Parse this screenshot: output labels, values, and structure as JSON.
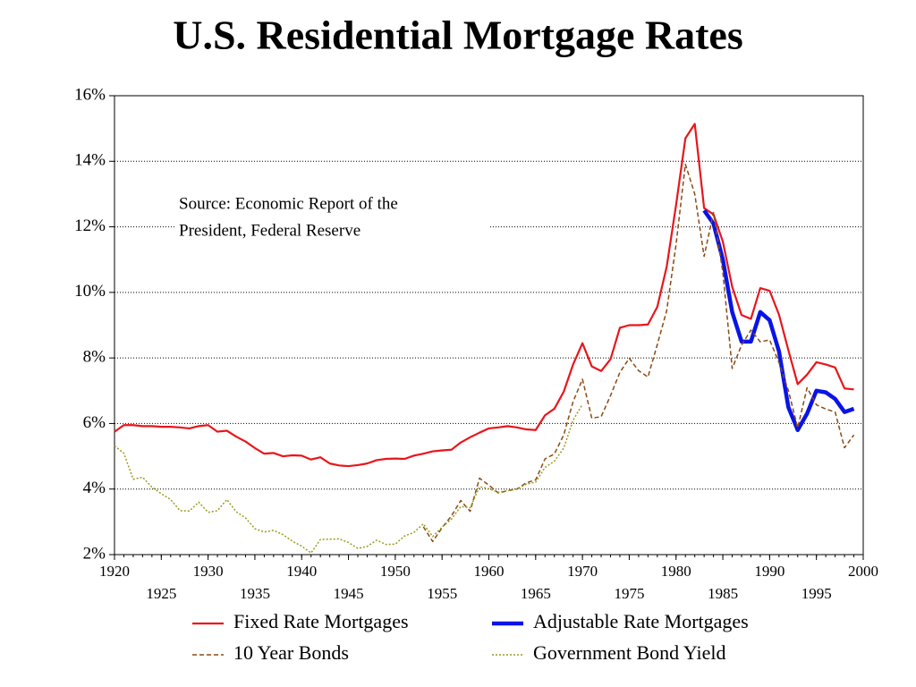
{
  "chart_data": {
    "type": "line",
    "title": "U.S. Residential Mortgage Rates",
    "annotation": [
      "Source: Economic Report of the",
      "President, Federal Reserve"
    ],
    "x": [
      1920,
      1921,
      1922,
      1923,
      1924,
      1925,
      1926,
      1927,
      1928,
      1929,
      1930,
      1931,
      1932,
      1933,
      1934,
      1935,
      1936,
      1937,
      1938,
      1939,
      1940,
      1941,
      1942,
      1943,
      1944,
      1945,
      1946,
      1947,
      1948,
      1949,
      1950,
      1951,
      1952,
      1953,
      1954,
      1955,
      1956,
      1957,
      1958,
      1959,
      1960,
      1961,
      1962,
      1963,
      1964,
      1965,
      1966,
      1967,
      1968,
      1969,
      1970,
      1971,
      1972,
      1973,
      1974,
      1975,
      1976,
      1977,
      1978,
      1979,
      1980,
      1981,
      1982,
      1983,
      1984,
      1985,
      1986,
      1987,
      1988,
      1989,
      1990,
      1991,
      1992,
      1993,
      1994,
      1995,
      1996,
      1997,
      1998,
      1999
    ],
    "series": [
      {
        "name": "Fixed Rate Mortgages",
        "color": "#e8161b",
        "style": "solid",
        "width": 2.2,
        "values": [
          5.75,
          5.95,
          5.95,
          5.92,
          5.92,
          5.9,
          5.9,
          5.88,
          5.85,
          5.92,
          5.95,
          5.75,
          5.78,
          5.6,
          5.45,
          5.25,
          5.08,
          5.1,
          5.0,
          5.03,
          5.02,
          4.9,
          4.97,
          4.78,
          4.72,
          4.7,
          4.73,
          4.78,
          4.88,
          4.92,
          4.93,
          4.92,
          5.02,
          5.08,
          5.15,
          5.18,
          5.2,
          5.42,
          5.58,
          5.72,
          5.85,
          5.88,
          5.92,
          5.88,
          5.82,
          5.8,
          6.25,
          6.45,
          6.97,
          7.8,
          8.45,
          7.74,
          7.6,
          7.96,
          8.92,
          9.0,
          9.0,
          9.02,
          9.56,
          10.78,
          12.66,
          14.7,
          15.14,
          12.57,
          12.38,
          11.55,
          10.17,
          9.31,
          9.19,
          10.13,
          10.05,
          9.32,
          8.24,
          7.2,
          7.49,
          7.87,
          7.8,
          7.71,
          7.07,
          7.04
        ]
      },
      {
        "name": "Adjustable Rate Mortgages",
        "color": "#0a14e6",
        "style": "solid",
        "width": 4.5,
        "values": [
          null,
          null,
          null,
          null,
          null,
          null,
          null,
          null,
          null,
          null,
          null,
          null,
          null,
          null,
          null,
          null,
          null,
          null,
          null,
          null,
          null,
          null,
          null,
          null,
          null,
          null,
          null,
          null,
          null,
          null,
          null,
          null,
          null,
          null,
          null,
          null,
          null,
          null,
          null,
          null,
          null,
          null,
          null,
          null,
          null,
          null,
          null,
          null,
          null,
          null,
          null,
          null,
          null,
          null,
          null,
          null,
          null,
          null,
          null,
          null,
          null,
          null,
          null,
          12.5,
          12.1,
          11.0,
          9.4,
          8.5,
          8.5,
          9.4,
          9.15,
          8.2,
          6.5,
          5.8,
          6.3,
          7.0,
          6.95,
          6.75,
          6.35,
          6.45
        ]
      },
      {
        "name": "10 Year Bonds",
        "color": "#8b4a14",
        "style": "dashed",
        "width": 1.5,
        "values": [
          null,
          null,
          null,
          null,
          null,
          null,
          null,
          null,
          null,
          null,
          null,
          null,
          null,
          null,
          null,
          null,
          null,
          null,
          null,
          null,
          null,
          null,
          null,
          null,
          null,
          null,
          null,
          null,
          null,
          null,
          null,
          null,
          null,
          2.85,
          2.4,
          2.82,
          3.18,
          3.65,
          3.32,
          4.33,
          4.12,
          3.88,
          3.95,
          4.0,
          4.19,
          4.28,
          4.92,
          5.07,
          5.65,
          6.67,
          7.35,
          6.16,
          6.21,
          6.85,
          7.56,
          7.99,
          7.61,
          7.42,
          8.41,
          9.44,
          11.46,
          13.91,
          13.0,
          11.1,
          12.44,
          10.62,
          7.68,
          8.39,
          8.85,
          8.49,
          8.55,
          7.86,
          7.01,
          5.87,
          7.09,
          6.57,
          6.44,
          6.35,
          5.26,
          5.65
        ]
      },
      {
        "name": "Government Bond Yield",
        "color": "#9a9a1e",
        "style": "dotted",
        "width": 1.5,
        "values": [
          5.32,
          5.09,
          4.3,
          4.36,
          4.06,
          3.86,
          3.68,
          3.34,
          3.33,
          3.6,
          3.29,
          3.34,
          3.68,
          3.31,
          3.12,
          2.79,
          2.69,
          2.74,
          2.61,
          2.41,
          2.26,
          2.05,
          2.46,
          2.47,
          2.48,
          2.37,
          2.19,
          2.25,
          2.44,
          2.31,
          2.32,
          2.57,
          2.68,
          2.94,
          2.55,
          2.84,
          3.08,
          3.47,
          3.43,
          4.07,
          4.01,
          3.9,
          3.95,
          4.0,
          4.15,
          4.21,
          4.66,
          4.85,
          5.25,
          6.1,
          6.59,
          null,
          null,
          null,
          null,
          null,
          null,
          null,
          null,
          null,
          null,
          null,
          null,
          null,
          null,
          null,
          null,
          null,
          null,
          null,
          null,
          null,
          null,
          null,
          null,
          null,
          null,
          null,
          null,
          null
        ]
      }
    ],
    "xlim": [
      1920,
      2000
    ],
    "xticks": [
      1920,
      1925,
      1930,
      1935,
      1940,
      1945,
      1950,
      1955,
      1960,
      1965,
      1970,
      1975,
      1980,
      1985,
      1990,
      1995,
      2000
    ],
    "ylim": [
      2,
      16
    ],
    "yticks": [
      {
        "value": 2,
        "label": "2%"
      },
      {
        "value": 4,
        "label": "4%"
      },
      {
        "value": 6,
        "label": "6%"
      },
      {
        "value": 8,
        "label": "8%"
      },
      {
        "value": 10,
        "label": "10%"
      },
      {
        "value": 12,
        "label": "12%"
      },
      {
        "value": 14,
        "label": "14%"
      },
      {
        "value": 16,
        "label": "16%"
      }
    ],
    "grid": true
  }
}
